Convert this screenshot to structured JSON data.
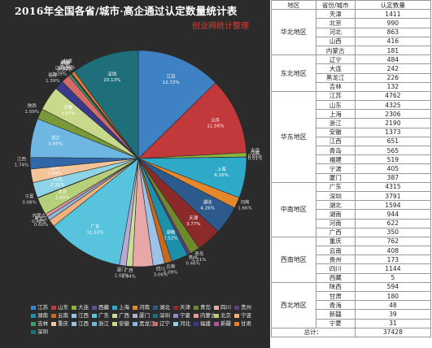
{
  "chart_data": {
    "type": "pie",
    "title": "2016年全国各省/城市·高企通过认定数量统计表",
    "watermark": "创业网统计整理",
    "slices": [
      {
        "name": "江苏",
        "value": 12.72,
        "label": "江苏\n12.72%",
        "color": "#3f82c4"
      },
      {
        "name": "山东",
        "value": 11.56,
        "label": "山东\n11.56%",
        "color": "#c1393a"
      },
      {
        "name": "大连",
        "value": 0.65,
        "label": "大连\n0.65%",
        "color": "#8bb33e"
      },
      {
        "name": "西藏",
        "value": 0.01,
        "label": "西藏\n0.01%",
        "color": "#6a4b9a"
      },
      {
        "name": "上海",
        "value": 6.16,
        "label": "上海\n6.16%",
        "color": "#2fa9c8"
      },
      {
        "name": "河南",
        "value": 1.66,
        "label": "河南\n1.66%",
        "color": "#e5872d"
      },
      {
        "name": "湖北",
        "value": 4.26,
        "label": "湖北\n4.26%",
        "color": "#2d5a8c"
      },
      {
        "name": "天津",
        "value": 3.77,
        "label": "天津\n3.77%",
        "color": "#8c2a2a"
      },
      {
        "name": "青岛",
        "value": 1.51,
        "label": "青岛\n1.51%",
        "color": "#6f8a2c"
      },
      {
        "name": "贵州",
        "value": 0.46,
        "label": "贵州\n0.46%",
        "color": "#5c3f82"
      },
      {
        "name": "湖南",
        "value": 2.52,
        "label": "湖南\n2.52%",
        "color": "#1d8fa8"
      },
      {
        "name": "云南",
        "value": 1.09,
        "label": "云南\n1.09%",
        "color": "#c56a1e"
      },
      {
        "name": "江西",
        "value": 1.74,
        "label": "四川\n3.06%",
        "color": "#9cc2e5"
      },
      {
        "name": "四川",
        "value": 3.06,
        "label": "",
        "color": "#e8a8a8"
      },
      {
        "name": "广西",
        "value": 0.94,
        "label": "广西\n0.94%",
        "color": "#c9dc98"
      },
      {
        "name": "厦门",
        "value": 1.03,
        "label": "厦门\n1.03%",
        "color": "#b9a8d4"
      },
      {
        "name": "广东",
        "value": 11.53,
        "label": "广东\n11.53%",
        "color": "#57c3dd"
      },
      {
        "name": "宁波",
        "value": 1.08,
        "label": "",
        "color": "#f0b27a"
      },
      {
        "name": "黑龙江",
        "value": 0.6,
        "label": "黑龙江\n0.60%",
        "color": "#8fb6de"
      },
      {
        "name": "内蒙古",
        "value": 0.48,
        "label": "内蒙古\n0.48%",
        "color": "#e39a9a"
      },
      {
        "name": "北京",
        "value": 2.65,
        "label": "北京\n2.65%",
        "color": "#b5cf7a"
      },
      {
        "name": "宁夏",
        "value": 0.08,
        "label": "宁夏\n0.08%",
        "color": "#9a86c4"
      },
      {
        "name": "湖南2",
        "value": 0.0,
        "label": "",
        "color": "#1d8fa8"
      },
      {
        "name": "河北",
        "value": 2.31,
        "label": "河北\n2.31%",
        "color": "#8fd4e6"
      },
      {
        "name": "重庆",
        "value": 2.04,
        "label": "重庆\n2.04%",
        "color": "#f3c39a"
      },
      {
        "name": "江西b",
        "value": 1.74,
        "label": "江西\n1.74%",
        "color": "#3166a8"
      },
      {
        "name": "浙江",
        "value": 5.85,
        "label": "浙江\n5.85%",
        "color": "#6fb7e3"
      },
      {
        "name": "陕西",
        "value": 1.59,
        "label": "陕西\n1.59%",
        "color": "#7a9a3a"
      },
      {
        "name": "安徽",
        "value": 3.67,
        "label": "安徽\n3.67%",
        "color": "#c8d98c"
      },
      {
        "name": "福建",
        "value": 1.39,
        "label": "福建\n1.39%",
        "color": "#3a3a8c"
      },
      {
        "name": "辽宁",
        "value": 1.29,
        "label": "辽宁\n1.29%",
        "color": "#d46a6a"
      },
      {
        "name": "吉林",
        "value": 0.35,
        "label": "吉林\n0.35%",
        "color": "#3c9c6a"
      },
      {
        "name": "新疆",
        "value": 0.1,
        "label": "新疆\n0.10%",
        "color": "#a85a9c"
      },
      {
        "name": "青海",
        "value": 0.13,
        "label": "青海\n0.13%",
        "color": "#3ab0c0"
      },
      {
        "name": "甘肃",
        "value": 0.48,
        "label": "甘肃\n0.48%",
        "color": "#e87b2c"
      },
      {
        "name": "深圳",
        "value": 10.13,
        "label": "深圳\n10.13%",
        "color": "#1f6f7a"
      }
    ],
    "legend": [
      "江苏",
      "山东",
      "大连",
      "西藏",
      "上海",
      "河南",
      "湖北",
      "天津",
      "青岛",
      "四川",
      "贵州",
      "湖南",
      "云南",
      "江西",
      "广东",
      "广西",
      "厦门",
      "深圳",
      "宁夏",
      "内蒙古",
      "北京",
      "宁波",
      "吉林",
      "重庆",
      "江西",
      "浙江",
      "安徽",
      "黑龙江",
      "辽宁",
      "河北",
      "福建",
      "新疆",
      "甘肃",
      "深圳"
    ]
  },
  "table": {
    "headers": [
      "地区",
      "省份/城市",
      "认定数量"
    ],
    "groups": [
      {
        "region": "华北地区",
        "rows": [
          [
            "天津",
            "1411"
          ],
          [
            "北京",
            "990"
          ],
          [
            "河北",
            "863"
          ],
          [
            "山西",
            "416"
          ],
          [
            "内蒙古",
            "181"
          ]
        ]
      },
      {
        "region": "东北地区",
        "rows": [
          [
            "辽宁",
            "484"
          ],
          [
            "大连",
            "242"
          ],
          [
            "黑龙江",
            "226"
          ],
          [
            "吉林",
            "132"
          ]
        ]
      },
      {
        "region": "华东地区",
        "rows": [
          [
            "江苏",
            "4762"
          ],
          [
            "山东",
            "4325"
          ],
          [
            "上海",
            "2306"
          ],
          [
            "浙江",
            "2190"
          ],
          [
            "安徽",
            "1373"
          ],
          [
            "江西",
            "651"
          ],
          [
            "青岛",
            "565"
          ],
          [
            "福建",
            "519"
          ],
          [
            "宁波",
            "405"
          ],
          [
            "厦门",
            "387"
          ]
        ]
      },
      {
        "region": "中南地区",
        "rows": [
          [
            "广东",
            "4315"
          ],
          [
            "深圳",
            "3791"
          ],
          [
            "湖北",
            "1594"
          ],
          [
            "湖南",
            "944"
          ],
          [
            "河南",
            "622"
          ],
          [
            "广西",
            "350"
          ]
        ]
      },
      {
        "region": "西南地区",
        "rows": [
          [
            "重庆",
            "762"
          ],
          [
            "云南",
            "408"
          ],
          [
            "贵州",
            "173"
          ],
          [
            "四川",
            "1144"
          ],
          [
            "西藏",
            "5"
          ]
        ]
      },
      {
        "region": "西北地区",
        "rows": [
          [
            "陕西",
            "594"
          ],
          [
            "甘肃",
            "180"
          ],
          [
            "青海",
            "48"
          ],
          [
            "新疆",
            "39"
          ],
          [
            "宁夏",
            "31"
          ]
        ]
      }
    ],
    "total_label": "总计：",
    "total_value": "37428"
  }
}
